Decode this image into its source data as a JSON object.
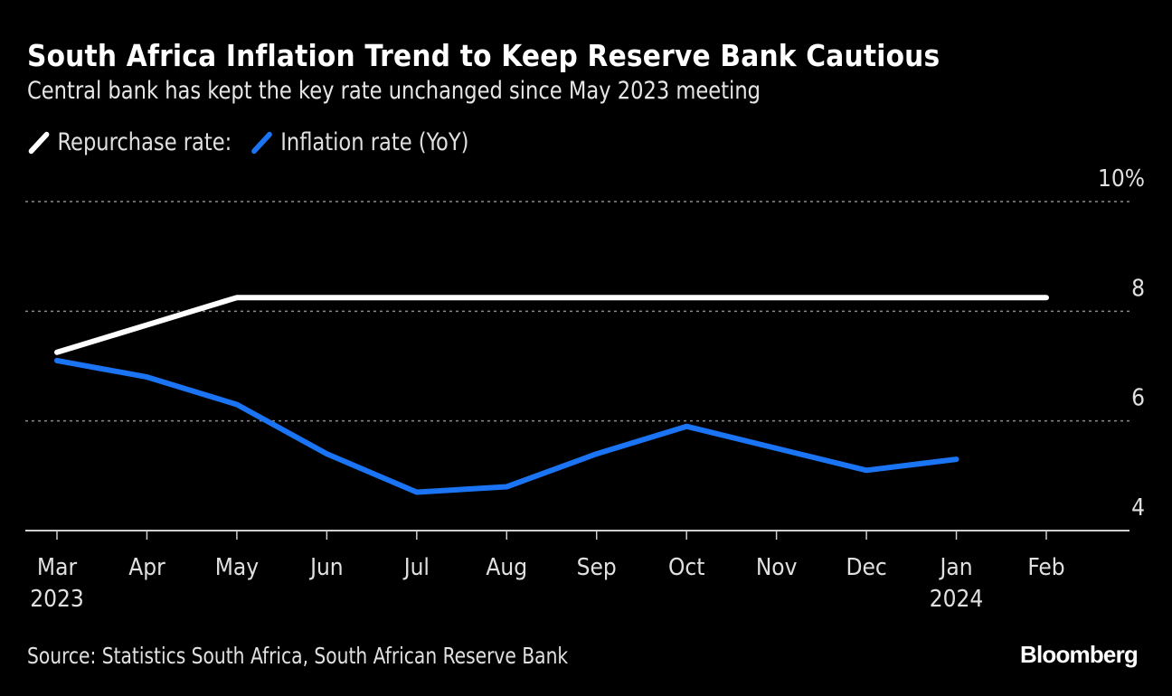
{
  "chart_data": {
    "type": "line",
    "title": "South Africa Inflation Trend to Keep Reserve Bank Cautious",
    "subtitle": "Central bank has kept the key rate unchanged since May 2023 meeting",
    "xlabel": "",
    "ylabel": "",
    "x": [
      "Mar 2023",
      "Apr 2023",
      "May 2023",
      "Jun 2023",
      "Jul 2023",
      "Aug 2023",
      "Sep 2023",
      "Oct 2023",
      "Nov 2023",
      "Dec 2023",
      "Jan 2024",
      "Feb 2024"
    ],
    "x_tick_labels": [
      {
        "month": "Mar",
        "year": "2023"
      },
      {
        "month": "Apr",
        "year": ""
      },
      {
        "month": "May",
        "year": ""
      },
      {
        "month": "Jun",
        "year": ""
      },
      {
        "month": "Jul",
        "year": ""
      },
      {
        "month": "Aug",
        "year": ""
      },
      {
        "month": "Sep",
        "year": ""
      },
      {
        "month": "Oct",
        "year": ""
      },
      {
        "month": "Nov",
        "year": ""
      },
      {
        "month": "Dec",
        "year": ""
      },
      {
        "month": "Jan",
        "year": "2024"
      },
      {
        "month": "Feb",
        "year": ""
      }
    ],
    "ylim": [
      4,
      10
    ],
    "y_ticks": [
      {
        "value": 10,
        "label": "10%"
      },
      {
        "value": 8,
        "label": "8"
      },
      {
        "value": 6,
        "label": "6"
      },
      {
        "value": 4,
        "label": "4"
      }
    ],
    "grid": true,
    "legend_position": "top-left",
    "series": [
      {
        "name": "Repurchase rate:",
        "color": "#ffffff",
        "values": [
          7.25,
          7.75,
          8.25,
          8.25,
          8.25,
          8.25,
          8.25,
          8.25,
          8.25,
          8.25,
          8.25,
          8.25
        ]
      },
      {
        "name": "Inflation rate (YoY)",
        "color": "#1a74f4",
        "values": [
          7.1,
          6.8,
          6.3,
          5.4,
          4.7,
          4.8,
          5.4,
          5.9,
          5.5,
          5.1,
          5.3,
          null
        ]
      }
    ]
  },
  "footer": {
    "source": "Source: Statistics South Africa, South African Reserve Bank",
    "brand": "Bloomberg"
  }
}
